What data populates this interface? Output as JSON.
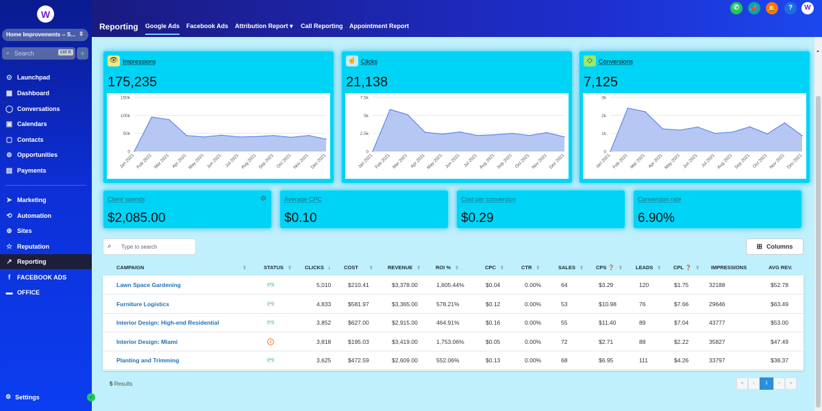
{
  "sidebar": {
    "logo": "W",
    "account": "Home Improvements -- S...",
    "search_placeholder": "Search",
    "search_shortcut": "ctrl K",
    "nav_top": [
      {
        "label": "Launchpad",
        "icon": "launchpad-icon"
      },
      {
        "label": "Dashboard",
        "icon": "dashboard-icon"
      },
      {
        "label": "Conversations",
        "icon": "chat-icon"
      },
      {
        "label": "Calendars",
        "icon": "calendar-icon"
      },
      {
        "label": "Contacts",
        "icon": "contacts-icon"
      },
      {
        "label": "Opportunities",
        "icon": "funnel-icon"
      },
      {
        "label": "Payments",
        "icon": "receipt-icon"
      }
    ],
    "nav_bottom": [
      {
        "label": "Marketing",
        "icon": "send-icon"
      },
      {
        "label": "Automation",
        "icon": "automation-icon"
      },
      {
        "label": "Sites",
        "icon": "globe-icon"
      },
      {
        "label": "Reputation",
        "icon": "star-icon"
      },
      {
        "label": "Reporting",
        "icon": "chart-line-icon"
      },
      {
        "label": "FACEBOOK ADS",
        "icon": "facebook-icon"
      },
      {
        "label": "OFFICE",
        "icon": "briefcase-icon"
      }
    ],
    "settings": "Settings"
  },
  "topbar": {
    "title": "Reporting",
    "tabs": [
      "Google Ads",
      "Facebook Ads",
      "Attribution Report",
      "Call Reporting",
      "Appointment Report"
    ],
    "dropdown_caret": "▾",
    "icons": {
      "phone": "✆",
      "megaphone": "📣",
      "bell": "🔔",
      "help": "?",
      "profile": "W"
    }
  },
  "cards": [
    {
      "label": "Impressions",
      "value": "175,235",
      "icon": "eye-icon",
      "icon_bg": "#f5e97a",
      "y_ticks": [
        "150k",
        "100k",
        "50k",
        "0"
      ],
      "y_max": 150000
    },
    {
      "label": "Clicks",
      "value": "21,138",
      "icon": "click-icon",
      "icon_bg": "#c9e9f7",
      "y_ticks": [
        "7.5k",
        "5k",
        "2.5k",
        "0"
      ],
      "y_max": 7500
    },
    {
      "label": "Conversions",
      "value": "7,125",
      "icon": "gem-icon",
      "icon_bg": "#9be86a",
      "y_ticks": [
        "3k",
        "2k",
        "1k",
        "0"
      ],
      "y_max": 3000
    }
  ],
  "chart_data": [
    {
      "type": "area",
      "title": "Impressions",
      "x": [
        "Jan 2021",
        "Feb 2021",
        "Mar 2021",
        "Apr 2021",
        "May 2021",
        "Jun 2021",
        "Jul 2021",
        "Aug 2021",
        "Sep 2021",
        "Oct 2021",
        "Nov 2021",
        "Dec 2021"
      ],
      "values": [
        0,
        95000,
        88000,
        44000,
        40000,
        45000,
        40000,
        41000,
        44000,
        39000,
        44000,
        34000
      ],
      "ylim": [
        0,
        150000
      ]
    },
    {
      "type": "area",
      "title": "Clicks",
      "x": [
        "Jan 2021",
        "Feb 2021",
        "Mar 2021",
        "Apr 2021",
        "May 2021",
        "Jun 2021",
        "Jul 2021",
        "Aug 2021",
        "Sep 2021",
        "Oct 2021",
        "Nov 2021",
        "Dec 2021"
      ],
      "values": [
        0,
        5800,
        5100,
        2650,
        2400,
        2700,
        2200,
        2300,
        2500,
        2200,
        2600,
        2000
      ],
      "ylim": [
        0,
        7500
      ]
    },
    {
      "type": "area",
      "title": "Conversions",
      "x": [
        "Jan 2021",
        "Feb 2021",
        "Mar 2021",
        "Apr 2021",
        "May 2021",
        "Jun 2021",
        "Jul 2021",
        "Aug 2021",
        "Sep 2021",
        "Oct 2021",
        "Nov 2021",
        "Dec 2021"
      ],
      "values": [
        0,
        2400,
        2200,
        1250,
        1180,
        1350,
        1000,
        1070,
        1360,
        970,
        1580,
        870
      ],
      "ylim": [
        0,
        3000
      ]
    }
  ],
  "metrics": [
    {
      "label": "Client spends",
      "value": "$2,085.00",
      "has_gear": true
    },
    {
      "label": "Average CPC",
      "value": "$0.10"
    },
    {
      "label": "Cost per conversion",
      "value": "$0.29"
    },
    {
      "label": "Conversion rate",
      "value": "6.90%"
    }
  ],
  "table": {
    "search_placeholder": "Type to search",
    "columns_button": "Columns",
    "headers": [
      "CAMPAIGN",
      "STATUS",
      "CLICKS",
      "COST",
      "REVENUE",
      "ROI %",
      "CPC",
      "CTR",
      "SALES",
      "CPS",
      "LEADS",
      "CPL",
      "IMPRESSIONS",
      "AVG REV."
    ],
    "rows": [
      {
        "campaign": "Lawn Space Gardening",
        "status": "live",
        "cells": [
          "5,010",
          "$210.41",
          "$3,378.00",
          "1,605.44%",
          "$0.04",
          "0.00%",
          "64",
          "$3.29",
          "120",
          "$1.75",
          "32188",
          "$52.78"
        ]
      },
      {
        "campaign": "Furniture Logistics",
        "status": "live",
        "cells": [
          "4,833",
          "$581.97",
          "$3,365.00",
          "578.21%",
          "$0.12",
          "0.00%",
          "53",
          "$10.98",
          "76",
          "$7.66",
          "29646",
          "$63.49"
        ]
      },
      {
        "campaign": "Interior Design: High-end Residential",
        "status": "live",
        "cells": [
          "3,852",
          "$627.00",
          "$2,915.00",
          "464.91%",
          "$0.16",
          "0.00%",
          "55",
          "$11.40",
          "89",
          "$7.04",
          "43777",
          "$53.00"
        ]
      },
      {
        "campaign": "Interior Design: Miami",
        "status": "paused",
        "cells": [
          "3,818",
          "$195.03",
          "$3,419.00",
          "1,753.06%",
          "$0.05",
          "0.00%",
          "72",
          "$2.71",
          "88",
          "$2.22",
          "35827",
          "$47.49"
        ]
      },
      {
        "campaign": "Planting and Trimming",
        "status": "live",
        "cells": [
          "3,625",
          "$472.59",
          "$2,609.00",
          "552.06%",
          "$0.13",
          "0.00%",
          "68",
          "$6.95",
          "111",
          "$4.26",
          "33797",
          "$38.37"
        ]
      }
    ],
    "result_count": "5",
    "result_label": "Results",
    "current_page": "1",
    "pager": [
      "«",
      "‹",
      "1",
      "›",
      "»"
    ]
  }
}
